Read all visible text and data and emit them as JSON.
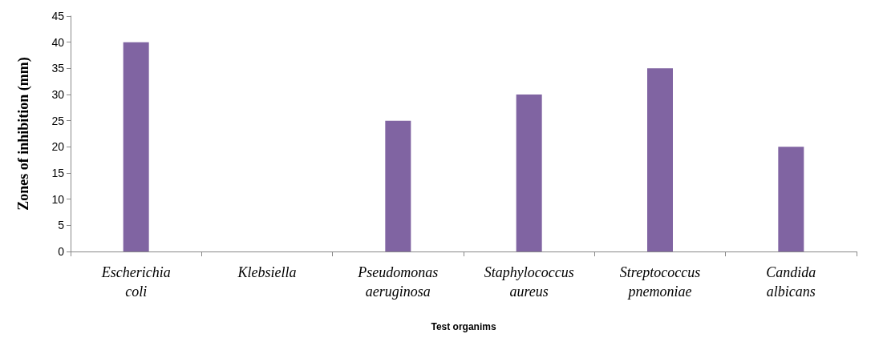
{
  "chart_data": {
    "type": "bar",
    "xlabel": "Test organims",
    "ylabel": "Zones of inhibition (mm)",
    "categories": [
      "Escherichia coli",
      "Klebsiella",
      "Pseudomonas aeruginosa",
      "Staphylococcus aureus",
      "Streptococcus pnemoniae",
      "Candida albicans"
    ],
    "values": [
      40,
      0,
      25,
      30,
      35,
      20
    ],
    "color": "#8064a2",
    "ylim": [
      0,
      45
    ],
    "yticks": [
      0,
      5,
      10,
      15,
      20,
      25,
      30,
      35,
      40,
      45
    ],
    "grid": false
  }
}
